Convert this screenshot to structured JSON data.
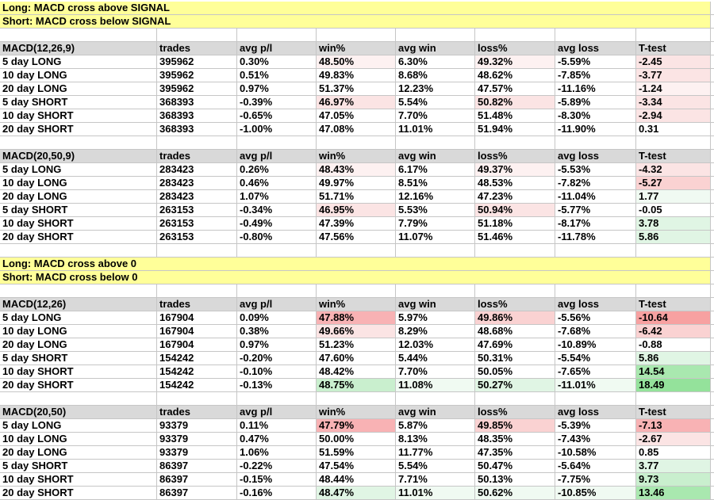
{
  "banners": {
    "signal": {
      "long": "Long: MACD cross above SIGNAL",
      "short": "Short: MACD cross below SIGNAL"
    },
    "zero": {
      "long": "Long: MACD cross above 0",
      "short": "Short: MACD cross below 0"
    }
  },
  "columns": [
    "trades",
    "avg p/l",
    "win%",
    "avg win",
    "loss%",
    "avg loss",
    "T-test"
  ],
  "colors": {
    "banner_bg": "#FFFF99",
    "header_bg": "#D9D9D9",
    "gridline": "#C6C6C6",
    "text": "#000000",
    "shades": {
      "p1": "#FDF1F1",
      "p2": "#FBE4E4",
      "p3": "#FAD2D2",
      "p4": "#F8B2B4",
      "p5": "#F7A1A1",
      "g1": "#F0FAF2",
      "g2": "#E0F5E4",
      "g3": "#C9EFCE",
      "g4": "#A9E8AF",
      "g5": "#94E29B"
    }
  },
  "tables": [
    {
      "name": "MACD(12,26,9)",
      "rows": [
        {
          "label": "5 day LONG",
          "cells": [
            "395962",
            "0.30%",
            "48.50%",
            "6.30%",
            "49.32%",
            "-5.59%",
            "-2.45"
          ],
          "shades": [
            "",
            "",
            "p1",
            "",
            "p1",
            "",
            "p2"
          ]
        },
        {
          "label": "10 day LONG",
          "cells": [
            "395962",
            "0.51%",
            "49.83%",
            "8.68%",
            "48.62%",
            "-7.85%",
            "-3.77"
          ],
          "shades": [
            "",
            "",
            "",
            "",
            "",
            "",
            "p2"
          ]
        },
        {
          "label": "20 day LONG",
          "cells": [
            "395962",
            "0.97%",
            "51.37%",
            "12.23%",
            "47.57%",
            "-11.16%",
            "-1.24"
          ],
          "shades": [
            "",
            "",
            "",
            "",
            "",
            "",
            "p1"
          ]
        },
        {
          "label": "5 day SHORT",
          "cells": [
            "368393",
            "-0.39%",
            "46.97%",
            "5.54%",
            "50.82%",
            "-5.89%",
            "-3.34"
          ],
          "shades": [
            "",
            "",
            "p2",
            "",
            "p2",
            "",
            "p2"
          ]
        },
        {
          "label": "10 day SHORT",
          "cells": [
            "368393",
            "-0.65%",
            "47.05%",
            "7.70%",
            "51.48%",
            "-8.30%",
            "-2.94"
          ],
          "shades": [
            "",
            "",
            "",
            "",
            "",
            "",
            "p2"
          ]
        },
        {
          "label": "20 day SHORT",
          "cells": [
            "368393",
            "-1.00%",
            "47.08%",
            "11.01%",
            "51.94%",
            "-11.90%",
            "0.31"
          ],
          "shades": [
            "",
            "",
            "",
            "",
            "",
            "",
            ""
          ]
        }
      ]
    },
    {
      "name": "MACD(20,50,9)",
      "rows": [
        {
          "label": "5 day LONG",
          "cells": [
            "283423",
            "0.26%",
            "48.43%",
            "6.17%",
            "49.37%",
            "-5.53%",
            "-4.32"
          ],
          "shades": [
            "",
            "",
            "p1",
            "",
            "p1",
            "",
            "p2"
          ]
        },
        {
          "label": "10 day LONG",
          "cells": [
            "283423",
            "0.46%",
            "49.97%",
            "8.51%",
            "48.53%",
            "-7.82%",
            "-5.27"
          ],
          "shades": [
            "",
            "",
            "",
            "",
            "",
            "",
            "p3"
          ]
        },
        {
          "label": "20 day LONG",
          "cells": [
            "283423",
            "1.07%",
            "51.71%",
            "12.16%",
            "47.23%",
            "-11.04%",
            "1.77"
          ],
          "shades": [
            "",
            "",
            "",
            "",
            "",
            "",
            "g1"
          ]
        },
        {
          "label": "5 day SHORT",
          "cells": [
            "263153",
            "-0.34%",
            "46.95%",
            "5.53%",
            "50.94%",
            "-5.77%",
            "-0.05"
          ],
          "shades": [
            "",
            "",
            "p2",
            "",
            "p2",
            "",
            ""
          ]
        },
        {
          "label": "10 day SHORT",
          "cells": [
            "263153",
            "-0.49%",
            "47.39%",
            "7.79%",
            "51.18%",
            "-8.17%",
            "3.78"
          ],
          "shades": [
            "",
            "",
            "",
            "",
            "",
            "",
            "g2"
          ]
        },
        {
          "label": "20 day SHORT",
          "cells": [
            "263153",
            "-0.80%",
            "47.56%",
            "11.07%",
            "51.46%",
            "-11.78%",
            "5.86"
          ],
          "shades": [
            "",
            "",
            "",
            "",
            "",
            "",
            "g2"
          ]
        }
      ]
    },
    {
      "name": "MACD(12,26)",
      "rows": [
        {
          "label": "5 day LONG",
          "cells": [
            "167904",
            "0.09%",
            "47.88%",
            "5.97%",
            "49.86%",
            "-5.56%",
            "-10.64"
          ],
          "shades": [
            "",
            "",
            "p4",
            "",
            "p3",
            "",
            "p5"
          ]
        },
        {
          "label": "10 day LONG",
          "cells": [
            "167904",
            "0.38%",
            "49.66%",
            "8.29%",
            "48.68%",
            "-7.68%",
            "-6.42"
          ],
          "shades": [
            "",
            "",
            "p2",
            "",
            "",
            "",
            "p3"
          ]
        },
        {
          "label": "20 day LONG",
          "cells": [
            "167904",
            "0.97%",
            "51.23%",
            "12.03%",
            "47.69%",
            "-10.89%",
            "-0.88"
          ],
          "shades": [
            "",
            "",
            "",
            "",
            "",
            "",
            ""
          ]
        },
        {
          "label": "5 day SHORT",
          "cells": [
            "154242",
            "-0.20%",
            "47.60%",
            "5.44%",
            "50.31%",
            "-5.54%",
            "5.86"
          ],
          "shades": [
            "",
            "",
            "",
            "",
            "",
            "",
            "g2"
          ]
        },
        {
          "label": "10 day SHORT",
          "cells": [
            "154242",
            "-0.10%",
            "48.42%",
            "7.70%",
            "50.05%",
            "-7.65%",
            "14.54"
          ],
          "shades": [
            "",
            "",
            "",
            "",
            "",
            "",
            "g4"
          ]
        },
        {
          "label": "20 day SHORT",
          "cells": [
            "154242",
            "-0.13%",
            "48.75%",
            "11.08%",
            "50.27%",
            "-11.01%",
            "18.49"
          ],
          "shades": [
            "",
            "",
            "g3",
            "g1",
            "g2",
            "g1",
            "g5"
          ]
        }
      ]
    },
    {
      "name": "MACD(20,50)",
      "rows": [
        {
          "label": "5 day LONG",
          "cells": [
            "93379",
            "0.11%",
            "47.79%",
            "5.87%",
            "49.85%",
            "-5.39%",
            "-7.13"
          ],
          "shades": [
            "",
            "",
            "p4",
            "",
            "p3",
            "",
            "p4"
          ]
        },
        {
          "label": "10 day LONG",
          "cells": [
            "93379",
            "0.47%",
            "50.00%",
            "8.13%",
            "48.35%",
            "-7.43%",
            "-2.67"
          ],
          "shades": [
            "",
            "",
            "",
            "",
            "",
            "",
            "p2"
          ]
        },
        {
          "label": "20 day LONG",
          "cells": [
            "93379",
            "1.06%",
            "51.59%",
            "11.77%",
            "47.35%",
            "-10.58%",
            "0.85"
          ],
          "shades": [
            "",
            "",
            "",
            "",
            "",
            "",
            ""
          ]
        },
        {
          "label": "5 day SHORT",
          "cells": [
            "86397",
            "-0.22%",
            "47.54%",
            "5.54%",
            "50.47%",
            "-5.64%",
            "3.77"
          ],
          "shades": [
            "",
            "",
            "",
            "",
            "",
            "",
            "g2"
          ]
        },
        {
          "label": "10 day SHORT",
          "cells": [
            "86397",
            "-0.15%",
            "48.44%",
            "7.71%",
            "50.13%",
            "-7.75%",
            "9.73"
          ],
          "shades": [
            "",
            "",
            "",
            "",
            "",
            "",
            "g3"
          ]
        },
        {
          "label": "20 day SHORT",
          "cells": [
            "86397",
            "-0.16%",
            "48.47%",
            "11.01%",
            "50.62%",
            "-10.85%",
            "13.46"
          ],
          "shades": [
            "",
            "",
            "g2",
            "g1",
            "g1",
            "g1",
            "g4"
          ]
        }
      ]
    }
  ]
}
